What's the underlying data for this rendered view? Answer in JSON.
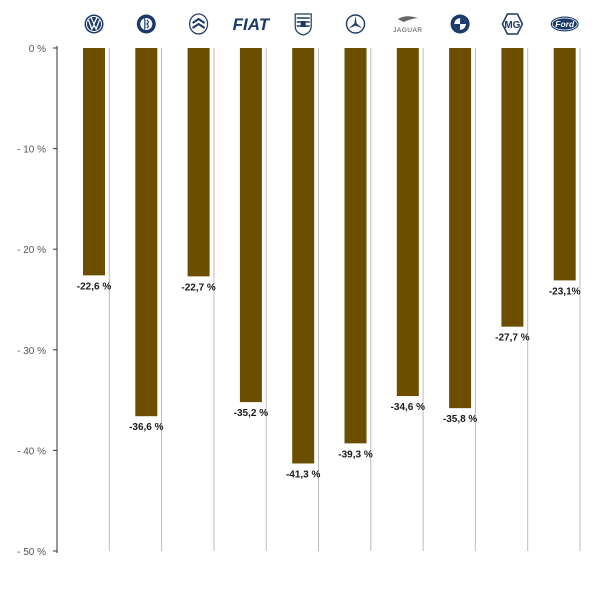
{
  "chart_data": {
    "type": "bar",
    "title": "",
    "xlabel": "",
    "ylabel": "",
    "categories": [
      "Volkswagen",
      "Alfa Romeo",
      "Citroën",
      "Fiat",
      "Porsche",
      "Mercedes-Benz",
      "Jaguar",
      "BMW",
      "MG",
      "Ford"
    ],
    "category_icons": [
      "vw-logo-icon",
      "alfa-romeo-logo-icon",
      "citroen-logo-icon",
      "fiat-logo-icon",
      "porsche-logo-icon",
      "mercedes-logo-icon",
      "jaguar-logo-icon",
      "bmw-logo-icon",
      "mg-logo-icon",
      "ford-logo-icon"
    ],
    "logo_texts": {
      "fiat": "FIAT",
      "jaguar": "JAGUAR",
      "mg": "MG",
      "ford": "Ford",
      "vw": "VW"
    },
    "values": [
      -22.6,
      -36.6,
      -22.7,
      -35.2,
      -41.3,
      -39.3,
      -34.6,
      -35.8,
      -27.7,
      -23.1
    ],
    "value_labels": [
      "-22,6 %",
      "-36,6 %",
      "-22,7 %",
      "-35,2 %",
      "-41,3 %",
      "-39,3 %",
      "-34,6 %",
      "-35,8 %",
      "-27,7 %",
      "-23,1%"
    ],
    "ylim": [
      -50,
      0
    ],
    "y_ticks": [
      0,
      -10,
      -20,
      -30,
      -40,
      -50
    ],
    "y_tick_labels": [
      "0 %",
      "- 10 %",
      "- 20 %",
      "- 30 %",
      "- 40 %",
      "- 50 %"
    ],
    "grid": "vertical separators",
    "legend": "none",
    "colors": {
      "bar": "#6b4e00",
      "axis": "#333333",
      "separator": "#bbbbbb",
      "logo": "#1b3a6b",
      "tick_text": "#555555",
      "label_text": "#1a1a1a"
    }
  }
}
